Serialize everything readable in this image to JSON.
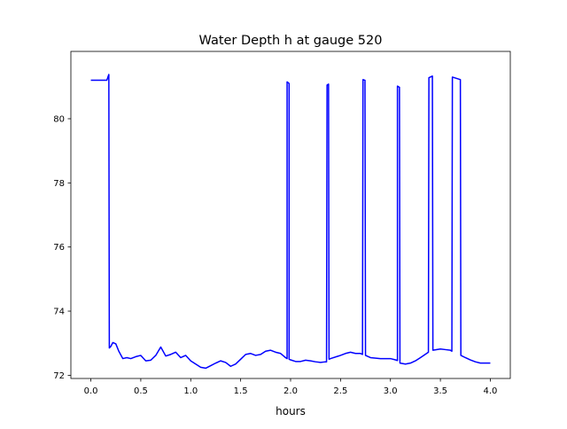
{
  "chart_data": {
    "type": "line",
    "title": "Water Depth h at gauge 520",
    "xlabel": "hours",
    "ylabel": "",
    "xlim": [
      -0.2,
      4.2
    ],
    "ylim": [
      71.9,
      82.1
    ],
    "xticks": [
      0.0,
      0.5,
      1.0,
      1.5,
      2.0,
      2.5,
      3.0,
      3.5,
      4.0
    ],
    "xtick_labels": [
      "0.0",
      "0.5",
      "1.0",
      "1.5",
      "2.0",
      "2.5",
      "3.0",
      "3.5",
      "4.0"
    ],
    "yticks": [
      72,
      74,
      76,
      78,
      80
    ],
    "ytick_labels": [
      "72",
      "74",
      "76",
      "78",
      "80"
    ],
    "grid": false,
    "line_color": "#0000ff",
    "series": [
      {
        "points": [
          [
            0.0,
            81.2
          ],
          [
            0.05,
            81.2
          ],
          [
            0.1,
            81.2
          ],
          [
            0.16,
            81.2
          ],
          [
            0.18,
            81.38
          ],
          [
            0.185,
            72.85
          ],
          [
            0.2,
            72.9
          ],
          [
            0.22,
            73.02
          ],
          [
            0.25,
            72.98
          ],
          [
            0.28,
            72.75
          ],
          [
            0.32,
            72.52
          ],
          [
            0.36,
            72.55
          ],
          [
            0.4,
            72.52
          ],
          [
            0.45,
            72.58
          ],
          [
            0.5,
            72.62
          ],
          [
            0.55,
            72.45
          ],
          [
            0.6,
            72.47
          ],
          [
            0.65,
            72.62
          ],
          [
            0.7,
            72.88
          ],
          [
            0.75,
            72.6
          ],
          [
            0.8,
            72.65
          ],
          [
            0.85,
            72.72
          ],
          [
            0.9,
            72.55
          ],
          [
            0.95,
            72.62
          ],
          [
            1.0,
            72.45
          ],
          [
            1.05,
            72.35
          ],
          [
            1.1,
            72.25
          ],
          [
            1.15,
            72.22
          ],
          [
            1.2,
            72.3
          ],
          [
            1.25,
            72.38
          ],
          [
            1.3,
            72.45
          ],
          [
            1.35,
            72.4
          ],
          [
            1.4,
            72.28
          ],
          [
            1.45,
            72.35
          ],
          [
            1.5,
            72.5
          ],
          [
            1.55,
            72.65
          ],
          [
            1.6,
            72.68
          ],
          [
            1.65,
            72.62
          ],
          [
            1.7,
            72.65
          ],
          [
            1.75,
            72.75
          ],
          [
            1.8,
            72.78
          ],
          [
            1.85,
            72.72
          ],
          [
            1.9,
            72.68
          ],
          [
            1.95,
            72.55
          ],
          [
            1.965,
            72.52
          ],
          [
            1.965,
            81.15
          ],
          [
            1.985,
            81.1
          ],
          [
            1.985,
            72.5
          ],
          [
            2.0,
            72.48
          ],
          [
            2.05,
            72.43
          ],
          [
            2.1,
            72.43
          ],
          [
            2.15,
            72.47
          ],
          [
            2.2,
            72.45
          ],
          [
            2.25,
            72.42
          ],
          [
            2.3,
            72.4
          ],
          [
            2.35,
            72.42
          ],
          [
            2.36,
            72.42
          ],
          [
            2.365,
            81.05
          ],
          [
            2.38,
            81.08
          ],
          [
            2.385,
            72.5
          ],
          [
            2.4,
            72.52
          ],
          [
            2.5,
            72.62
          ],
          [
            2.55,
            72.68
          ],
          [
            2.6,
            72.72
          ],
          [
            2.65,
            72.68
          ],
          [
            2.7,
            72.68
          ],
          [
            2.72,
            72.65
          ],
          [
            2.725,
            81.22
          ],
          [
            2.745,
            81.2
          ],
          [
            2.75,
            72.62
          ],
          [
            2.8,
            72.55
          ],
          [
            2.9,
            72.52
          ],
          [
            3.0,
            72.52
          ],
          [
            3.05,
            72.48
          ],
          [
            3.07,
            72.46
          ],
          [
            3.07,
            81.02
          ],
          [
            3.09,
            80.98
          ],
          [
            3.095,
            72.38
          ],
          [
            3.15,
            72.35
          ],
          [
            3.2,
            72.38
          ],
          [
            3.25,
            72.45
          ],
          [
            3.3,
            72.55
          ],
          [
            3.38,
            72.72
          ],
          [
            3.385,
            81.28
          ],
          [
            3.42,
            81.33
          ],
          [
            3.425,
            72.78
          ],
          [
            3.5,
            72.82
          ],
          [
            3.55,
            72.8
          ],
          [
            3.6,
            72.78
          ],
          [
            3.615,
            72.75
          ],
          [
            3.62,
            81.3
          ],
          [
            3.7,
            81.22
          ],
          [
            3.705,
            72.62
          ],
          [
            3.75,
            72.55
          ],
          [
            3.8,
            72.48
          ],
          [
            3.85,
            72.42
          ],
          [
            3.9,
            72.38
          ],
          [
            3.95,
            72.38
          ],
          [
            4.0,
            72.38
          ]
        ]
      }
    ]
  }
}
